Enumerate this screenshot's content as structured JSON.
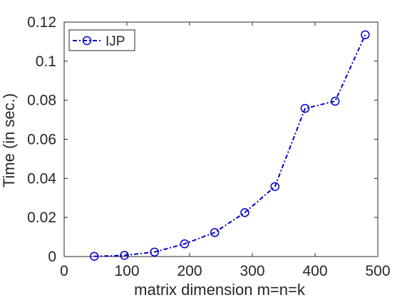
{
  "chart_data": {
    "type": "line",
    "title": "",
    "xlabel": "matrix dimension m=n=k",
    "ylabel": "Time (in sec.)",
    "xlim": [
      0,
      500
    ],
    "ylim": [
      0,
      0.12
    ],
    "xticks": [
      0,
      100,
      200,
      300,
      400,
      500
    ],
    "xtick_labels": [
      "0",
      "100",
      "200",
      "300",
      "400",
      "500"
    ],
    "yticks": [
      0,
      0.02,
      0.04,
      0.06,
      0.08,
      0.1,
      0.12
    ],
    "ytick_labels": [
      "0",
      "0.02",
      "0.04",
      "0.06",
      "0.08",
      "0.1",
      "0.12"
    ],
    "grid": false,
    "legend": "top-left",
    "series": [
      {
        "name": "IJP",
        "color": "#0000cc",
        "line_style": "dash-dot",
        "marker": "open-circle",
        "x": [
          48,
          96,
          144,
          192,
          240,
          288,
          336,
          384,
          432,
          480
        ],
        "y": [
          0.0001,
          0.0006,
          0.0023,
          0.0065,
          0.0123,
          0.0225,
          0.0358,
          0.0758,
          0.0795,
          0.1135
        ]
      }
    ]
  }
}
